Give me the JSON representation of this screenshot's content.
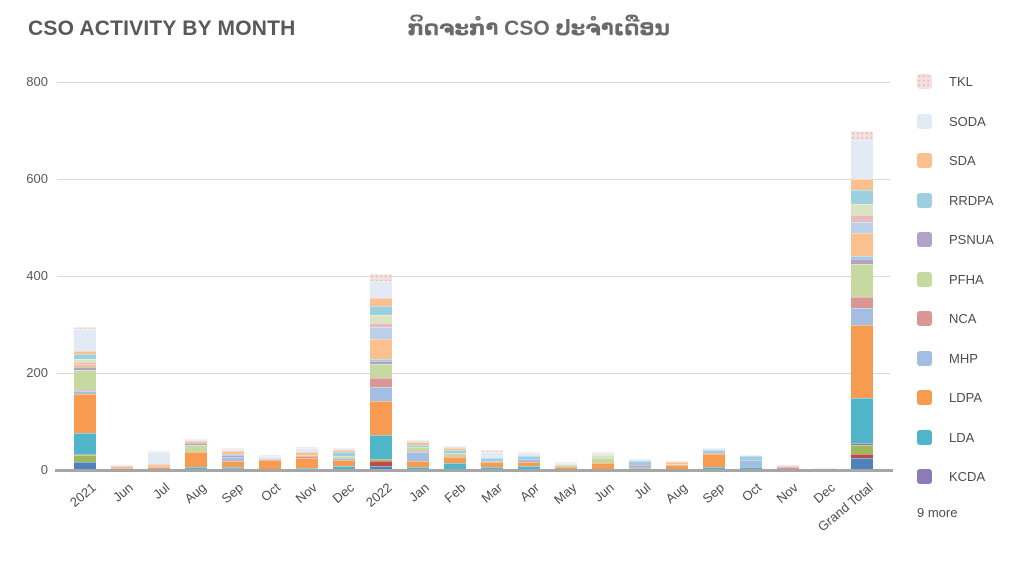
{
  "title": {
    "main": "CSO ACTIVITY BY MONTH",
    "lao": "ກິດຈະກຳ CSO ປະຈຳເດືອນ"
  },
  "colors": {
    "title_text": "#595959",
    "axis_text": "#595959",
    "gridline": "#d9d9d9",
    "axis_line": "#a6a6a6",
    "background": "#ffffff"
  },
  "legend": {
    "more_label": "9 more",
    "items": [
      {
        "label": "TKL",
        "color": "#F4E0DF",
        "pattern": "dotted"
      },
      {
        "label": "SODA",
        "color": "#E1EAF5",
        "pattern": "solid"
      },
      {
        "label": "SDA",
        "color": "#FAC090",
        "pattern": "solid"
      },
      {
        "label": "RRDPA",
        "color": "#9CCFDF",
        "pattern": "solid"
      },
      {
        "label": "PSNUA",
        "color": "#B3A2C7",
        "pattern": "solid"
      },
      {
        "label": "PFHA",
        "color": "#C6D9A0",
        "pattern": "solid"
      },
      {
        "label": "NCA",
        "color": "#D99694",
        "pattern": "solid"
      },
      {
        "label": "MHP",
        "color": "#A3BEE2",
        "pattern": "solid"
      },
      {
        "label": "LDPA",
        "color": "#F79B50",
        "pattern": "solid"
      },
      {
        "label": "LDA",
        "color": "#51B5CA",
        "pattern": "solid"
      },
      {
        "label": "KCDA",
        "color": "#8C7BB6",
        "pattern": "solid"
      }
    ]
  },
  "chart_data": {
    "type": "bar",
    "stacked": true,
    "title": "CSO ACTIVITY BY MONTH",
    "xlabel": "",
    "ylabel": "",
    "ylim": [
      0,
      800
    ],
    "yticks": [
      0,
      200,
      400,
      600,
      800
    ],
    "grid": true,
    "legend_position": "right",
    "categories": [
      "2021",
      "Jun",
      "Jul",
      "Aug",
      "Sep",
      "Oct",
      "Nov",
      "Dec",
      "2022",
      "Jan",
      "Feb",
      "Mar",
      "Apr",
      "May",
      "Jun",
      "Jul",
      "Aug",
      "Sep",
      "Oct",
      "Nov",
      "Dec",
      "Grand Total"
    ],
    "series_note": "bottom-to-top stack order; unnamed entries belong to the '9 more' legend overflow",
    "series": [
      {
        "key": "more-blue",
        "label": "",
        "color": "#4F81BD",
        "pattern": "solid",
        "values": [
          16,
          0,
          0,
          0,
          4,
          0,
          0,
          3,
          8,
          0,
          0,
          0,
          0,
          0,
          0,
          0,
          0,
          0,
          0,
          0,
          0,
          24
        ]
      },
      {
        "key": "more-red",
        "label": "",
        "color": "#BE4B48",
        "pattern": "solid",
        "values": [
          0,
          0,
          0,
          0,
          0,
          0,
          0,
          0,
          10,
          0,
          0,
          0,
          0,
          0,
          0,
          0,
          0,
          3,
          3,
          0,
          0,
          10
        ]
      },
      {
        "key": "more-green",
        "label": "",
        "color": "#9BBB59",
        "pattern": "solid",
        "values": [
          14,
          1,
          0,
          3,
          0,
          0,
          0,
          0,
          4,
          3,
          0,
          0,
          0,
          0,
          0,
          0,
          0,
          0,
          0,
          0,
          0,
          18
        ]
      },
      {
        "key": "KCDA",
        "label": "KCDA",
        "color": "#8C7BB6",
        "pattern": "solid",
        "values": [
          4,
          0,
          0,
          0,
          0,
          0,
          0,
          0,
          0,
          0,
          0,
          0,
          0,
          0,
          0,
          0,
          0,
          0,
          0,
          0,
          0,
          4
        ]
      },
      {
        "key": "LDA",
        "label": "LDA",
        "color": "#51B5CA",
        "pattern": "solid",
        "values": [
          43,
          0,
          3,
          4,
          3,
          2,
          4,
          6,
          50,
          4,
          14,
          6,
          8,
          3,
          0,
          4,
          0,
          4,
          4,
          0,
          0,
          93
        ]
      },
      {
        "key": "LDPA",
        "label": "LDPA",
        "color": "#F79B50",
        "pattern": "solid",
        "values": [
          80,
          4,
          4,
          30,
          12,
          18,
          20,
          12,
          70,
          12,
          12,
          10,
          8,
          4,
          14,
          0,
          10,
          26,
          0,
          0,
          0,
          150
        ]
      },
      {
        "key": "MHP",
        "label": "MHP",
        "color": "#A3BEE2",
        "pattern": "solid",
        "values": [
          5,
          0,
          2,
          0,
          8,
          2,
          0,
          4,
          30,
          18,
          0,
          3,
          6,
          0,
          0,
          0,
          0,
          0,
          14,
          0,
          0,
          35
        ]
      },
      {
        "key": "NCA",
        "label": "NCA",
        "color": "#D99694",
        "pattern": "solid",
        "values": [
          4,
          2,
          0,
          0,
          0,
          0,
          4,
          0,
          18,
          3,
          2,
          0,
          0,
          0,
          0,
          3,
          0,
          3,
          0,
          6,
          0,
          22
        ]
      },
      {
        "key": "PFHA",
        "label": "PFHA",
        "color": "#C6D9A0",
        "pattern": "solid",
        "values": [
          40,
          0,
          0,
          15,
          0,
          0,
          3,
          4,
          28,
          8,
          8,
          0,
          0,
          4,
          10,
          0,
          3,
          0,
          0,
          0,
          0,
          68
        ]
      },
      {
        "key": "PSNUA",
        "label": "PSNUA",
        "color": "#B3A2C7",
        "pattern": "solid",
        "values": [
          6,
          0,
          0,
          3,
          4,
          0,
          0,
          0,
          6,
          0,
          0,
          0,
          0,
          0,
          0,
          3,
          0,
          0,
          0,
          0,
          0,
          12
        ]
      },
      {
        "key": "more-cyan",
        "label": "",
        "color": "#9CCFDF",
        "pattern": "solid",
        "values": [
          0,
          0,
          0,
          0,
          0,
          0,
          0,
          0,
          6,
          0,
          0,
          0,
          0,
          0,
          0,
          0,
          0,
          0,
          0,
          0,
          0,
          6
        ]
      },
      {
        "key": "more-peach",
        "label": "",
        "color": "#FAC090",
        "pattern": "solid",
        "values": [
          6,
          0,
          0,
          0,
          0,
          0,
          0,
          0,
          40,
          0,
          0,
          0,
          0,
          0,
          0,
          0,
          0,
          0,
          0,
          0,
          0,
          46
        ]
      },
      {
        "key": "more-steelblue",
        "label": "",
        "color": "#BCCFE8",
        "pattern": "solid",
        "values": [
          0,
          0,
          0,
          0,
          0,
          0,
          0,
          0,
          24,
          0,
          0,
          0,
          0,
          0,
          0,
          0,
          0,
          0,
          0,
          0,
          0,
          24
        ]
      },
      {
        "key": "more-rose",
        "label": "",
        "color": "#E8BCBA",
        "pattern": "solid",
        "values": [
          4,
          0,
          0,
          0,
          0,
          0,
          0,
          0,
          10,
          0,
          0,
          0,
          0,
          0,
          0,
          0,
          0,
          0,
          0,
          2,
          0,
          14
        ]
      },
      {
        "key": "more-palegreen",
        "label": "",
        "color": "#D9E5C0",
        "pattern": "solid",
        "values": [
          6,
          0,
          0,
          0,
          0,
          0,
          0,
          0,
          16,
          0,
          0,
          0,
          0,
          0,
          6,
          0,
          0,
          0,
          0,
          0,
          0,
          22
        ]
      },
      {
        "key": "RRDPA",
        "label": "RRDPA",
        "color": "#9CCFDF",
        "pattern": "solid",
        "values": [
          12,
          0,
          0,
          0,
          3,
          0,
          0,
          8,
          18,
          4,
          6,
          6,
          6,
          0,
          0,
          8,
          0,
          5,
          7,
          0,
          0,
          30
        ]
      },
      {
        "key": "SDA",
        "label": "SDA",
        "color": "#FAC090",
        "pattern": "solid",
        "values": [
          6,
          2,
          3,
          4,
          5,
          0,
          6,
          4,
          16,
          6,
          3,
          0,
          0,
          0,
          0,
          0,
          4,
          0,
          0,
          0,
          0,
          22
        ]
      },
      {
        "key": "SODA",
        "label": "SODA",
        "color": "#E1EAF5",
        "pattern": "solid",
        "values": [
          45,
          0,
          25,
          4,
          4,
          6,
          8,
          4,
          35,
          4,
          5,
          12,
          7,
          3,
          5,
          5,
          0,
          4,
          3,
          0,
          3,
          80
        ]
      },
      {
        "key": "TKL",
        "label": "TKL",
        "color": "#F4E0DF",
        "pattern": "dotted",
        "values": [
          4,
          1,
          3,
          2,
          2,
          2,
          2,
          0,
          16,
          0,
          0,
          4,
          2,
          2,
          2,
          0,
          2,
          0,
          0,
          2,
          1,
          20
        ]
      }
    ]
  }
}
